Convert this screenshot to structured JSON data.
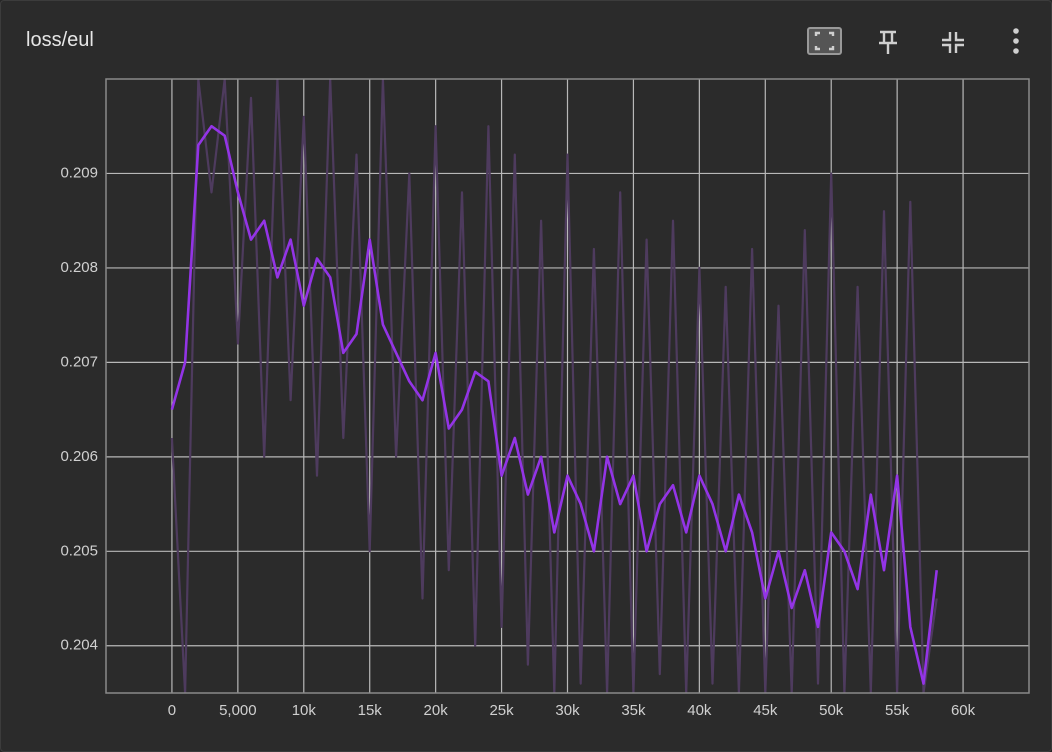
{
  "chart_data": {
    "type": "line",
    "title": "loss/eul",
    "x": [
      0,
      1000,
      2000,
      3000,
      4000,
      5000,
      6000,
      7000,
      8000,
      9000,
      10000,
      11000,
      12000,
      13000,
      14000,
      15000,
      16000,
      17000,
      18000,
      19000,
      20000,
      21000,
      22000,
      23000,
      24000,
      25000,
      26000,
      27000,
      28000,
      29000,
      30000,
      31000,
      32000,
      33000,
      34000,
      35000,
      36000,
      37000,
      38000,
      39000,
      40000,
      41000,
      42000,
      43000,
      44000,
      45000,
      46000,
      47000,
      48000,
      49000,
      50000,
      51000,
      52000,
      53000,
      54000,
      55000,
      56000,
      57000,
      58000
    ],
    "series": [
      {
        "color": "#4e3b5e",
        "values": [
          0.2062,
          0.2035,
          0.21,
          0.2088,
          0.21,
          0.2072,
          0.2098,
          0.206,
          0.21,
          0.2066,
          0.2096,
          0.2058,
          0.21,
          0.2062,
          0.2092,
          0.205,
          0.21,
          0.206,
          0.209,
          0.2045,
          0.2095,
          0.2048,
          0.2088,
          0.204,
          0.2095,
          0.2042,
          0.2092,
          0.2038,
          0.2085,
          0.2035,
          0.2092,
          0.2036,
          0.2082,
          0.2035,
          0.2088,
          0.2035,
          0.2083,
          0.2037,
          0.2085,
          0.2035,
          0.208,
          0.2036,
          0.2078,
          0.2035,
          0.2082,
          0.2035,
          0.2076,
          0.2035,
          0.2084,
          0.2036,
          0.209,
          0.2035,
          0.2078,
          0.2035,
          0.2086,
          0.2035,
          0.2087,
          0.2035,
          0.2045
        ]
      },
      {
        "color": "#9334e6",
        "values": [
          0.2065,
          0.207,
          0.2093,
          0.2095,
          0.2094,
          0.2088,
          0.2083,
          0.2085,
          0.2079,
          0.2083,
          0.2076,
          0.2081,
          0.2079,
          0.2071,
          0.2073,
          0.2083,
          0.2074,
          0.2071,
          0.2068,
          0.2066,
          0.2071,
          0.2063,
          0.2065,
          0.2069,
          0.2068,
          0.2058,
          0.2062,
          0.2056,
          0.206,
          0.2052,
          0.2058,
          0.2055,
          0.205,
          0.206,
          0.2055,
          0.2058,
          0.205,
          0.2055,
          0.2057,
          0.2052,
          0.2058,
          0.2055,
          0.205,
          0.2056,
          0.2052,
          0.2045,
          0.205,
          0.2044,
          0.2048,
          0.2042,
          0.2052,
          0.205,
          0.2046,
          0.2056,
          0.2048,
          0.2058,
          0.2042,
          0.2036,
          0.2048
        ]
      }
    ],
    "xlim": [
      -5000,
      65000
    ],
    "xticks": [
      0,
      {
        "value": 5000,
        "label": "5,000"
      },
      {
        "value": 10000,
        "label": "10k"
      },
      {
        "value": 15000,
        "label": "15k"
      },
      {
        "value": 20000,
        "label": "20k"
      },
      {
        "value": 25000,
        "label": "25k"
      },
      {
        "value": 30000,
        "label": "30k"
      },
      {
        "value": 35000,
        "label": "35k"
      },
      {
        "value": 40000,
        "label": "40k"
      },
      {
        "value": 45000,
        "label": "45k"
      },
      {
        "value": 50000,
        "label": "50k"
      },
      {
        "value": 55000,
        "label": "55k"
      },
      {
        "value": 60000,
        "label": "60k"
      }
    ],
    "ylim": [
      0.2035,
      0.21
    ],
    "yticks": [
      0.204,
      0.205,
      0.206,
      0.207,
      0.208,
      0.209
    ],
    "grid": true
  }
}
